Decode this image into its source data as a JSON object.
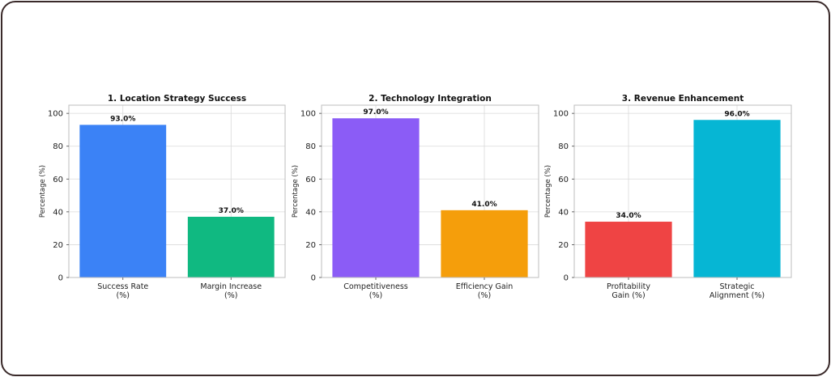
{
  "chart_data": [
    {
      "type": "bar",
      "title": "1. Location Strategy Success",
      "ylabel": "Percentage (%)",
      "ylim": [
        0,
        105
      ],
      "yticks": [
        0,
        20,
        40,
        60,
        80,
        100
      ],
      "grid": true,
      "categories": [
        [
          "Success Rate",
          "(%)"
        ],
        [
          "Margin Increase",
          "(%)"
        ]
      ],
      "values": [
        93.0,
        37.0
      ],
      "value_labels": [
        "93.0%",
        "37.0%"
      ],
      "colors": [
        "#3b82f6",
        "#10b981"
      ]
    },
    {
      "type": "bar",
      "title": "2. Technology Integration",
      "ylabel": "Percentage (%)",
      "ylim": [
        0,
        105
      ],
      "yticks": [
        0,
        20,
        40,
        60,
        80,
        100
      ],
      "grid": true,
      "categories": [
        [
          "Competitiveness",
          "(%)"
        ],
        [
          "Efficiency Gain",
          "(%)"
        ]
      ],
      "values": [
        97.0,
        41.0
      ],
      "value_labels": [
        "97.0%",
        "41.0%"
      ],
      "colors": [
        "#8b5cf6",
        "#f59e0b"
      ]
    },
    {
      "type": "bar",
      "title": "3. Revenue Enhancement",
      "ylabel": "Percentage (%)",
      "ylim": [
        0,
        105
      ],
      "yticks": [
        0,
        20,
        40,
        60,
        80,
        100
      ],
      "grid": true,
      "categories": [
        [
          "Profitability",
          "Gain (%)"
        ],
        [
          "Strategic",
          "Alignment (%)"
        ]
      ],
      "values": [
        34.0,
        96.0
      ],
      "value_labels": [
        "34.0%",
        "96.0%"
      ],
      "colors": [
        "#ef4444",
        "#06b6d4"
      ]
    }
  ]
}
